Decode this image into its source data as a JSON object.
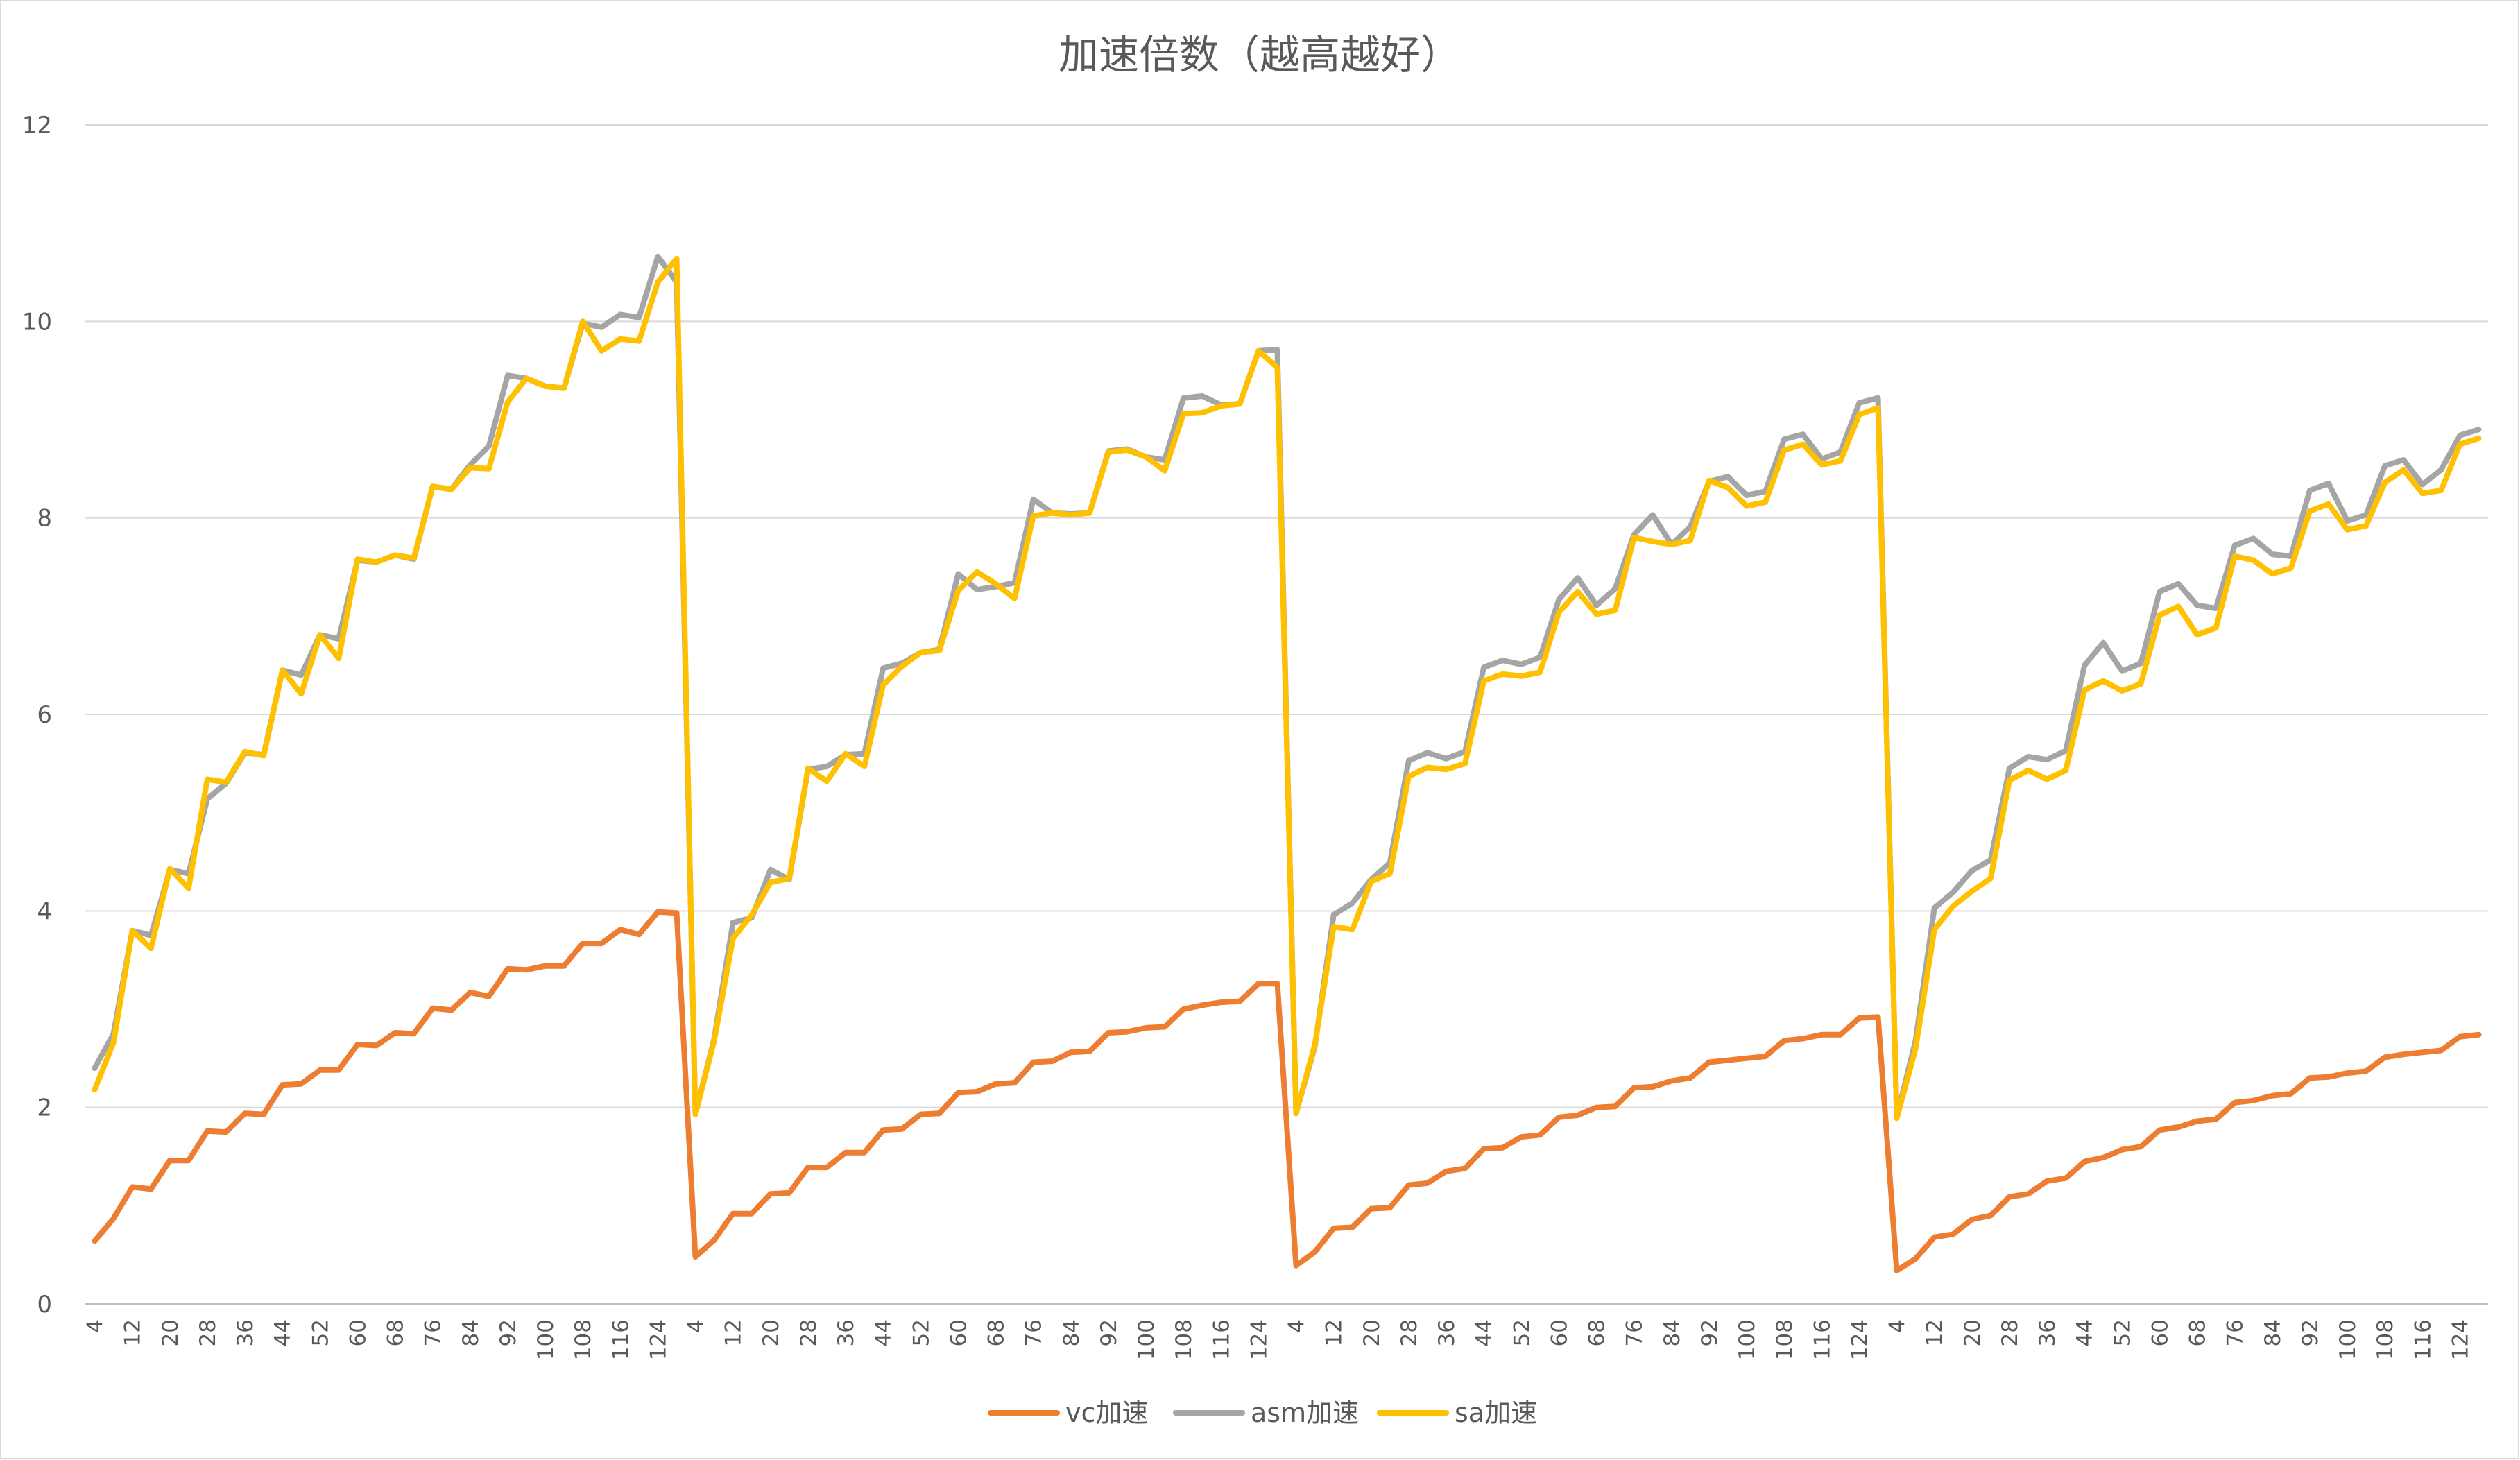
{
  "chart_data": {
    "type": "line",
    "title": "加速倍数（越高越好）",
    "xlabel": "",
    "ylabel": "",
    "ylim": [
      0,
      12
    ],
    "yticks": [
      0,
      2,
      4,
      6,
      8,
      10,
      12
    ],
    "grid": true,
    "legend_position": "bottom",
    "x_tick_labels": [
      "4",
      "12",
      "20",
      "28",
      "36",
      "44",
      "52",
      "60",
      "68",
      "76",
      "84",
      "92",
      "100",
      "108",
      "116",
      "124"
    ],
    "x": [
      4,
      8,
      12,
      16,
      20,
      24,
      28,
      32,
      36,
      40,
      44,
      48,
      52,
      56,
      60,
      64,
      68,
      72,
      76,
      80,
      84,
      88,
      92,
      96,
      100,
      104,
      108,
      112,
      116,
      120,
      124,
      128,
      4,
      8,
      12,
      16,
      20,
      24,
      28,
      32,
      36,
      40,
      44,
      48,
      52,
      56,
      60,
      64,
      68,
      72,
      76,
      80,
      84,
      88,
      92,
      96,
      100,
      104,
      108,
      112,
      116,
      120,
      124,
      128,
      4,
      8,
      12,
      16,
      20,
      24,
      28,
      32,
      36,
      40,
      44,
      48,
      52,
      56,
      60,
      64,
      68,
      72,
      76,
      80,
      84,
      88,
      92,
      96,
      100,
      104,
      108,
      112,
      116,
      120,
      124,
      128,
      4,
      8,
      12,
      16,
      20,
      24,
      28,
      32,
      36,
      40,
      44,
      48,
      52,
      56,
      60,
      64,
      68,
      72,
      76,
      80,
      84,
      88,
      92,
      96,
      100,
      104,
      108,
      112,
      116,
      120,
      124,
      128
    ],
    "series": [
      {
        "name": "vc加速",
        "color": "#ED7D31",
        "values": [
          0.64,
          0.87,
          1.19,
          1.17,
          1.46,
          1.46,
          1.76,
          1.75,
          1.94,
          1.93,
          2.23,
          2.24,
          2.38,
          2.38,
          2.64,
          2.63,
          2.76,
          2.75,
          3.01,
          2.99,
          3.17,
          3.13,
          3.41,
          3.4,
          3.44,
          3.44,
          3.67,
          3.67,
          3.81,
          3.76,
          3.99,
          3.98,
          0.48,
          0.65,
          0.92,
          0.92,
          1.12,
          1.13,
          1.39,
          1.39,
          1.54,
          1.54,
          1.77,
          1.78,
          1.93,
          1.94,
          2.15,
          2.16,
          2.24,
          2.25,
          2.46,
          2.47,
          2.56,
          2.57,
          2.76,
          2.77,
          2.81,
          2.82,
          3.0,
          3.04,
          3.07,
          3.08,
          3.26,
          3.26,
          0.39,
          0.53,
          0.77,
          0.78,
          0.97,
          0.98,
          1.21,
          1.23,
          1.35,
          1.38,
          1.58,
          1.59,
          1.7,
          1.72,
          1.9,
          1.92,
          2.0,
          2.01,
          2.2,
          2.21,
          2.27,
          2.3,
          2.46,
          2.48,
          2.5,
          2.52,
          2.68,
          2.7,
          2.74,
          2.74,
          2.91,
          2.92,
          0.34,
          0.46,
          0.68,
          0.71,
          0.86,
          0.9,
          1.09,
          1.12,
          1.25,
          1.28,
          1.45,
          1.49,
          1.57,
          1.6,
          1.77,
          1.8,
          1.86,
          1.88,
          2.05,
          2.07,
          2.12,
          2.14,
          2.3,
          2.31,
          2.35,
          2.37,
          2.51,
          2.54,
          2.56,
          2.58,
          2.72,
          2.74
        ]
      },
      {
        "name": "asm加速",
        "color": "#A5A5A5",
        "values": [
          2.4,
          2.75,
          3.8,
          3.75,
          4.42,
          4.38,
          5.14,
          5.3,
          5.61,
          5.59,
          6.45,
          6.4,
          6.81,
          6.77,
          7.57,
          7.55,
          7.62,
          7.58,
          8.32,
          8.29,
          8.54,
          8.73,
          9.45,
          9.42,
          9.34,
          9.32,
          9.98,
          9.94,
          10.07,
          10.04,
          10.66,
          10.4,
          1.93,
          2.7,
          3.88,
          3.93,
          4.42,
          4.32,
          5.44,
          5.47,
          5.59,
          5.6,
          6.47,
          6.52,
          6.63,
          6.66,
          7.43,
          7.27,
          7.3,
          7.34,
          8.19,
          8.05,
          8.04,
          8.05,
          8.68,
          8.7,
          8.62,
          8.59,
          9.22,
          9.24,
          9.15,
          9.16,
          9.7,
          9.71,
          1.94,
          2.62,
          3.96,
          4.08,
          4.32,
          4.49,
          5.53,
          5.61,
          5.55,
          5.62,
          6.48,
          6.55,
          6.51,
          6.58,
          7.17,
          7.39,
          7.11,
          7.28,
          7.83,
          8.03,
          7.73,
          7.91,
          8.37,
          8.42,
          8.23,
          8.27,
          8.8,
          8.85,
          8.6,
          8.67,
          9.17,
          9.22,
          1.9,
          2.68,
          4.03,
          4.19,
          4.41,
          4.52,
          5.45,
          5.57,
          5.54,
          5.63,
          6.5,
          6.73,
          6.44,
          6.52,
          7.25,
          7.33,
          7.11,
          7.08,
          7.72,
          7.79,
          7.63,
          7.61,
          8.28,
          8.35,
          7.97,
          8.03,
          8.53,
          8.59,
          8.34,
          8.49,
          8.84,
          8.9
        ]
      },
      {
        "name": "sa加速",
        "color": "#FFC000",
        "values": [
          2.18,
          2.66,
          3.8,
          3.62,
          4.43,
          4.23,
          5.34,
          5.31,
          5.62,
          5.58,
          6.45,
          6.21,
          6.81,
          6.57,
          7.58,
          7.55,
          7.62,
          7.59,
          8.32,
          8.29,
          8.51,
          8.5,
          9.18,
          9.42,
          9.34,
          9.32,
          10.0,
          9.7,
          9.82,
          9.8,
          10.4,
          10.64,
          1.93,
          2.68,
          3.72,
          3.96,
          4.29,
          4.33,
          5.45,
          5.32,
          5.6,
          5.47,
          6.3,
          6.49,
          6.63,
          6.65,
          7.26,
          7.45,
          7.33,
          7.18,
          8.02,
          8.05,
          8.03,
          8.05,
          8.67,
          8.69,
          8.62,
          8.48,
          9.06,
          9.07,
          9.14,
          9.16,
          9.7,
          9.53,
          1.94,
          2.64,
          3.84,
          3.81,
          4.3,
          4.38,
          5.37,
          5.46,
          5.44,
          5.5,
          6.34,
          6.41,
          6.39,
          6.43,
          7.04,
          7.25,
          7.02,
          7.06,
          7.8,
          7.76,
          7.73,
          7.77,
          8.38,
          8.31,
          8.12,
          8.16,
          8.69,
          8.75,
          8.54,
          8.58,
          9.05,
          9.12,
          1.89,
          2.6,
          3.81,
          4.05,
          4.2,
          4.33,
          5.33,
          5.43,
          5.34,
          5.43,
          6.25,
          6.34,
          6.24,
          6.31,
          7.01,
          7.1,
          6.81,
          6.88,
          7.61,
          7.57,
          7.43,
          7.49,
          8.07,
          8.14,
          7.88,
          7.92,
          8.36,
          8.49,
          8.25,
          8.28,
          8.75,
          8.81
        ]
      }
    ]
  }
}
